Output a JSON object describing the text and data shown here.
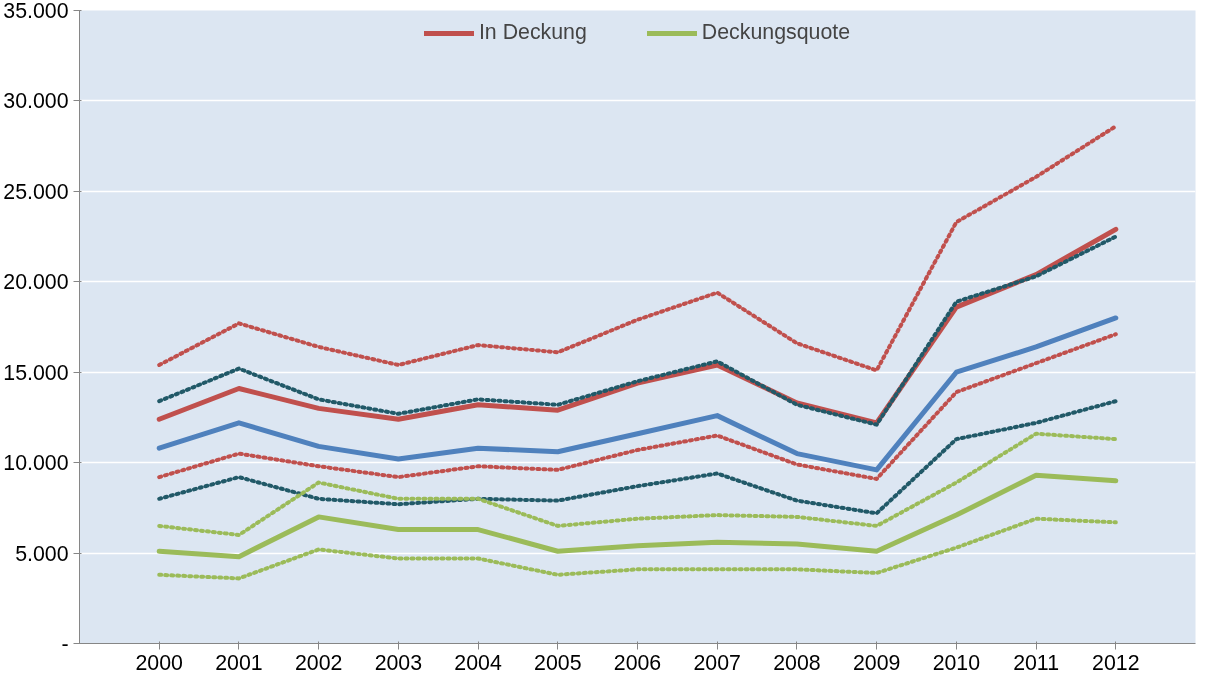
{
  "chart_data": {
    "type": "line",
    "categories": [
      "2000",
      "2001",
      "2002",
      "2003",
      "2004",
      "2005",
      "2006",
      "2007",
      "2008",
      "2009",
      "2010",
      "2011",
      "2012"
    ],
    "ylim": [
      0,
      35000
    ],
    "yticks": [
      {
        "value": 0,
        "label": "-"
      },
      {
        "value": 5000,
        "label": "5.000"
      },
      {
        "value": 10000,
        "label": "10.000"
      },
      {
        "value": 15000,
        "label": "15.000"
      },
      {
        "value": 20000,
        "label": "20.000"
      },
      {
        "value": 25000,
        "label": "25.000"
      },
      {
        "value": 30000,
        "label": "30.000"
      },
      {
        "value": 35000,
        "label": "35.000"
      }
    ],
    "grid": "y",
    "legend": "top",
    "marker": "none",
    "series": [
      {
        "color": "#c0504d",
        "line_style": "dotted",
        "values": [
          15400,
          17700,
          16400,
          15400,
          16500,
          16100,
          17900,
          19400,
          16600,
          15100,
          23300,
          25800,
          28600
        ]
      },
      {
        "color": "#c0504d",
        "line_style": "dotted",
        "values": [
          9200,
          10500,
          9800,
          9200,
          9800,
          9600,
          10700,
          11500,
          9900,
          9100,
          13900,
          15500,
          17100
        ]
      },
      {
        "color": "#215968",
        "line_style": "dotted",
        "values": [
          13400,
          15200,
          13500,
          12700,
          13500,
          13200,
          14500,
          15600,
          13200,
          12100,
          18900,
          20300,
          22500
        ]
      },
      {
        "color": "#215968",
        "line_style": "dotted",
        "values": [
          8000,
          9200,
          8000,
          7700,
          8000,
          7900,
          8700,
          9400,
          7900,
          7200,
          11300,
          12200,
          13400
        ]
      },
      {
        "color": "#9bbb59",
        "line_style": "dotted",
        "values": [
          6500,
          6000,
          8900,
          8000,
          8000,
          6500,
          6900,
          7100,
          7000,
          6500,
          8900,
          11600,
          11300
        ]
      },
      {
        "color": "#9bbb59",
        "line_style": "dotted",
        "values": [
          3800,
          3600,
          5200,
          4700,
          4700,
          3800,
          4100,
          4100,
          4100,
          3900,
          5300,
          6900,
          6700
        ]
      },
      {
        "color": "#4f81bd",
        "line_style": "solid",
        "values": [
          10800,
          12200,
          10900,
          10200,
          10800,
          10600,
          11600,
          12600,
          10500,
          9600,
          15000,
          16400,
          18000
        ]
      },
      {
        "name": "In Deckung",
        "color": "#c0504d",
        "line_style": "solid",
        "values": [
          12400,
          14100,
          13000,
          12400,
          13200,
          12900,
          14400,
          15400,
          13300,
          12200,
          18600,
          20400,
          22900
        ]
      },
      {
        "name": "Deckungsquote",
        "color": "#9bbb59",
        "line_style": "solid",
        "values": [
          5100,
          4800,
          7000,
          6300,
          6300,
          5100,
          5400,
          5600,
          5500,
          5100,
          7100,
          9300,
          9000
        ]
      }
    ]
  }
}
